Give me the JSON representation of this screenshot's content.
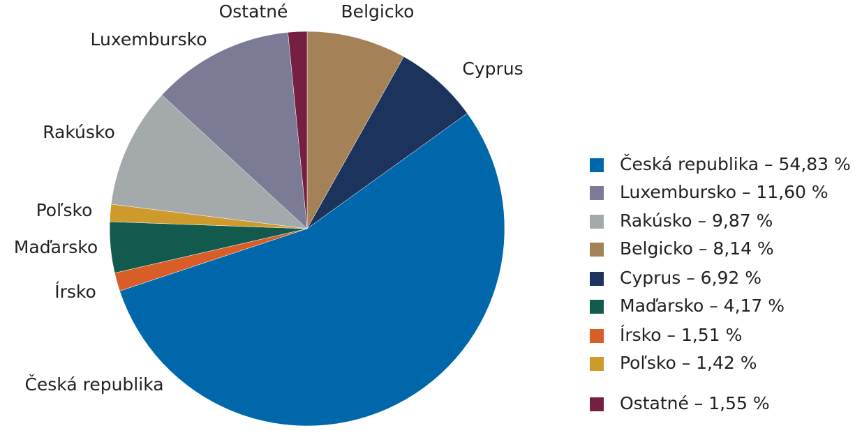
{
  "chart_data": {
    "type": "pie",
    "categories": [
      "Belgicko",
      "Cyprus",
      "Česká republika",
      "Írsko",
      "Maďarsko",
      "Poľsko",
      "Rakúsko",
      "Luxembursko",
      "Ostatné"
    ],
    "values": [
      8.14,
      6.92,
      54.83,
      1.51,
      4.17,
      1.42,
      9.87,
      11.6,
      1.55
    ],
    "colors": [
      "#a58158",
      "#1c335e",
      "#0067ab",
      "#d95d27",
      "#135a4e",
      "#cf9a2c",
      "#a4a9ab",
      "#7b7b96",
      "#751f42"
    ],
    "legend": [
      "Česká republika – 54,83 %",
      "Luxembursko – 11,60 %",
      "Rakúsko – 9,87 %",
      "Belgicko – 8,14 %",
      "Cyprus – 6,92 %",
      "Maďarsko – 4,17 %",
      "Írsko – 1,51 %",
      "Poľsko – 1,42 %",
      "Ostatné – 1,55 %"
    ]
  }
}
